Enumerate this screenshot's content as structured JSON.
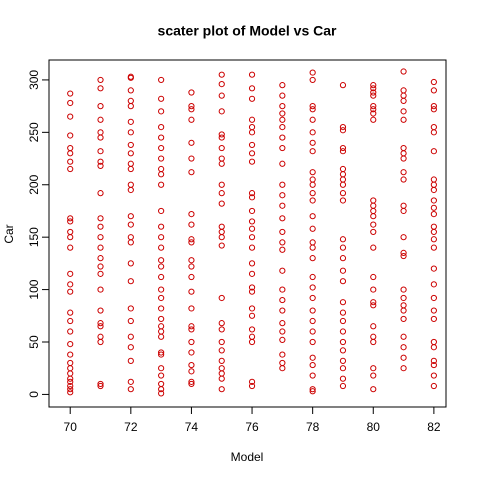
{
  "chart_data": {
    "type": "scatter",
    "title": "scater plot of Model vs Car",
    "x_label": "Model",
    "y_label": "Car",
    "color": "#cc0000",
    "xlim": [
      69.3,
      82.4
    ],
    "ylim": [
      -12,
      319
    ],
    "xticks": [
      70,
      72,
      74,
      76,
      78,
      80,
      82
    ],
    "yticks": [
      0,
      50,
      100,
      150,
      200,
      250,
      300
    ],
    "x": [
      70,
      70,
      70,
      70,
      70,
      70,
      70,
      70,
      70,
      70,
      70,
      70,
      70,
      70,
      70,
      70,
      70,
      70,
      70,
      70,
      70,
      70,
      70,
      70,
      70,
      70,
      70,
      70,
      70,
      71,
      71,
      71,
      71,
      71,
      71,
      71,
      71,
      71,
      71,
      71,
      71,
      71,
      71,
      71,
      71,
      71,
      71,
      71,
      71,
      71,
      71,
      71,
      71,
      71,
      72,
      72,
      72,
      72,
      72,
      72,
      72,
      72,
      72,
      72,
      72,
      72,
      72,
      72,
      72,
      72,
      72,
      72,
      72,
      72,
      72,
      72,
      72,
      72,
      72,
      72,
      73,
      73,
      73,
      73,
      73,
      73,
      73,
      73,
      73,
      73,
      73,
      73,
      73,
      73,
      73,
      73,
      73,
      73,
      73,
      73,
      73,
      73,
      73,
      73,
      73,
      73,
      73,
      73,
      73,
      73,
      73,
      74,
      74,
      74,
      74,
      74,
      74,
      74,
      74,
      74,
      74,
      74,
      74,
      74,
      74,
      74,
      74,
      74,
      74,
      74,
      74,
      74,
      74,
      74,
      74,
      75,
      75,
      75,
      75,
      75,
      75,
      75,
      75,
      75,
      75,
      75,
      75,
      75,
      75,
      75,
      75,
      75,
      75,
      75,
      75,
      75,
      75,
      75,
      75,
      75,
      75,
      76,
      76,
      76,
      76,
      76,
      76,
      76,
      76,
      76,
      76,
      76,
      76,
      76,
      76,
      76,
      76,
      76,
      76,
      76,
      76,
      76,
      76,
      76,
      76,
      76,
      76,
      76,
      77,
      77,
      77,
      77,
      77,
      77,
      77,
      77,
      77,
      77,
      77,
      77,
      77,
      77,
      77,
      77,
      77,
      77,
      77,
      77,
      77,
      77,
      77,
      77,
      77,
      77,
      78,
      78,
      78,
      78,
      78,
      78,
      78,
      78,
      78,
      78,
      78,
      78,
      78,
      78,
      78,
      78,
      78,
      78,
      78,
      78,
      78,
      78,
      78,
      78,
      78,
      78,
      78,
      78,
      78,
      78,
      79,
      79,
      79,
      79,
      79,
      79,
      79,
      79,
      79,
      79,
      79,
      79,
      79,
      79,
      79,
      79,
      79,
      79,
      79,
      79,
      79,
      79,
      79,
      79,
      79,
      79,
      80,
      80,
      80,
      80,
      80,
      80,
      80,
      80,
      80,
      80,
      80,
      80,
      80,
      80,
      80,
      80,
      80,
      80,
      80,
      80,
      80,
      80,
      80,
      80,
      80,
      81,
      81,
      81,
      81,
      81,
      81,
      81,
      81,
      81,
      81,
      81,
      81,
      81,
      81,
      81,
      81,
      81,
      81,
      81,
      81,
      81,
      81,
      81,
      81,
      81,
      82,
      82,
      82,
      82,
      82,
      82,
      82,
      82,
      82,
      82,
      82,
      82,
      82,
      82,
      82,
      82,
      82,
      82,
      82,
      82,
      82,
      82,
      82,
      82,
      82,
      82,
      82,
      82
    ],
    "y": [
      287,
      278,
      265,
      247,
      235,
      230,
      222,
      215,
      168,
      165,
      155,
      150,
      140,
      115,
      105,
      98,
      78,
      70,
      60,
      48,
      38,
      30,
      25,
      20,
      15,
      12,
      8,
      5,
      2,
      300,
      292,
      275,
      262,
      250,
      245,
      232,
      222,
      218,
      192,
      168,
      160,
      150,
      140,
      130,
      122,
      115,
      100,
      80,
      68,
      65,
      55,
      50,
      10,
      8,
      303,
      302,
      290,
      280,
      275,
      260,
      250,
      238,
      230,
      220,
      215,
      200,
      195,
      170,
      162,
      150,
      145,
      125,
      108,
      82,
      70,
      55,
      45,
      32,
      12,
      5,
      300,
      282,
      270,
      255,
      245,
      235,
      225,
      215,
      210,
      200,
      175,
      160,
      150,
      140,
      128,
      122,
      112,
      100,
      92,
      82,
      72,
      65,
      60,
      55,
      40,
      38,
      25,
      18,
      10,
      5,
      1,
      288,
      275,
      272,
      262,
      240,
      225,
      212,
      172,
      162,
      148,
      145,
      128,
      122,
      112,
      98,
      82,
      65,
      62,
      50,
      40,
      28,
      22,
      12,
      10,
      305,
      296,
      285,
      270,
      248,
      245,
      235,
      225,
      220,
      200,
      192,
      182,
      160,
      155,
      150,
      142,
      92,
      68,
      62,
      50,
      42,
      32,
      25,
      20,
      15,
      5,
      305,
      292,
      282,
      262,
      255,
      250,
      238,
      230,
      222,
      192,
      188,
      175,
      165,
      158,
      150,
      140,
      125,
      115,
      102,
      98,
      82,
      75,
      62,
      55,
      50,
      12,
      8,
      295,
      285,
      275,
      268,
      262,
      255,
      245,
      235,
      220,
      200,
      190,
      180,
      168,
      155,
      145,
      138,
      118,
      100,
      90,
      80,
      68,
      60,
      52,
      38,
      30,
      25,
      307,
      300,
      275,
      272,
      262,
      250,
      240,
      232,
      212,
      205,
      200,
      192,
      185,
      170,
      158,
      145,
      140,
      130,
      112,
      102,
      92,
      80,
      70,
      60,
      50,
      35,
      28,
      18,
      5,
      3,
      295,
      255,
      252,
      235,
      232,
      215,
      210,
      205,
      200,
      192,
      185,
      148,
      140,
      130,
      118,
      108,
      88,
      78,
      70,
      60,
      50,
      42,
      32,
      25,
      15,
      8,
      295,
      292,
      288,
      285,
      275,
      272,
      268,
      262,
      185,
      180,
      175,
      170,
      162,
      155,
      140,
      112,
      100,
      88,
      85,
      65,
      55,
      50,
      25,
      18,
      5,
      308,
      290,
      285,
      280,
      270,
      262,
      235,
      230,
      225,
      212,
      205,
      180,
      175,
      150,
      135,
      132,
      100,
      92,
      85,
      80,
      72,
      55,
      45,
      35,
      25,
      298,
      290,
      275,
      272,
      255,
      250,
      232,
      205,
      200,
      195,
      185,
      178,
      172,
      160,
      155,
      148,
      140,
      120,
      105,
      92,
      80,
      72,
      50,
      45,
      32,
      28,
      18,
      8
    ]
  }
}
